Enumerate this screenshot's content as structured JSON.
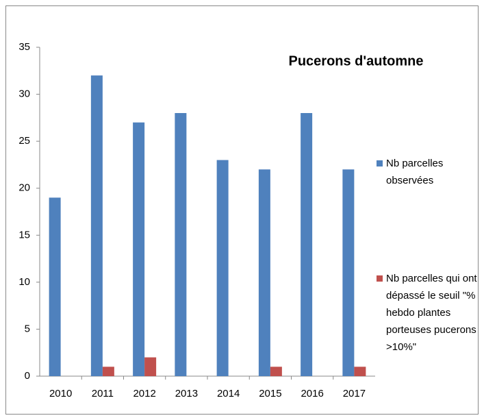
{
  "chart_data": {
    "type": "bar",
    "title": "Pucerons d'automne",
    "categories": [
      "2010",
      "2011",
      "2012",
      "2013",
      "2014",
      "2015",
      "2016",
      "2017"
    ],
    "series": [
      {
        "name": "Nb parcelles observées",
        "color": "#4f81bd",
        "values": [
          19,
          32,
          27,
          28,
          23,
          22,
          28,
          22
        ]
      },
      {
        "name": "Nb parcelles qui ont dépassé le seuil \"% hebdo plantes porteuses pucerons >10%\"",
        "color": "#c0504d",
        "values": [
          0,
          1,
          2,
          0,
          0,
          1,
          0,
          1
        ]
      }
    ],
    "ylim": [
      0,
      35
    ],
    "yticks": [
      0,
      5,
      10,
      15,
      20,
      25,
      30,
      35
    ],
    "grid": false,
    "legend": "right"
  }
}
